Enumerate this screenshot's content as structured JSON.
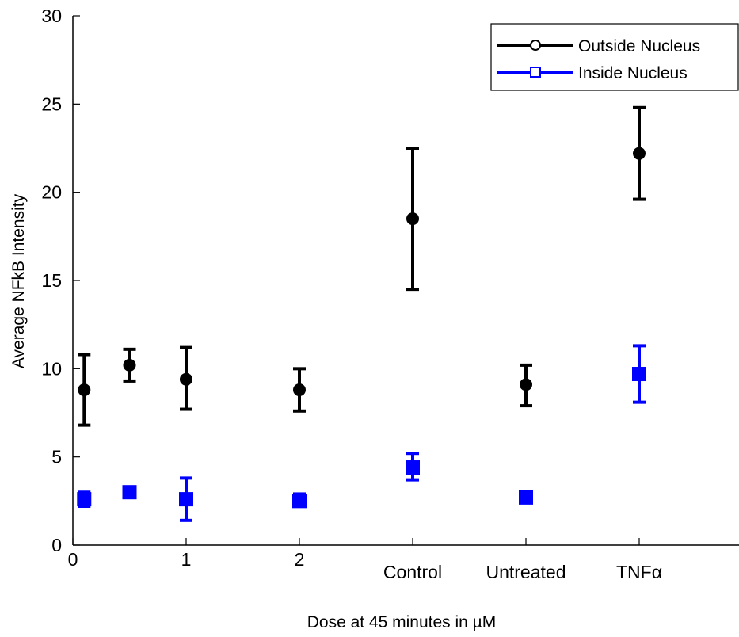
{
  "chart_data": {
    "type": "scatter",
    "title": "",
    "xlabel": "Dose at 45 minutes in µM",
    "ylabel": "Average NFkB Intensity",
    "ylim": [
      0,
      30
    ],
    "xlim": [
      0,
      6
    ],
    "grid": false,
    "legend_position": "top-right",
    "y_ticks": [
      "0",
      "5",
      "10",
      "15",
      "20",
      "25",
      "30"
    ],
    "y_tick_values": [
      0,
      5,
      10,
      15,
      20,
      25,
      30
    ],
    "x_ticks": [
      "0",
      "1",
      "2",
      "Control",
      "Untreated",
      "TNFα"
    ],
    "x_tick_values": [
      0,
      1,
      2,
      3,
      4,
      5
    ],
    "series": [
      {
        "name": "Outside Nucleus",
        "color": "#000000",
        "marker": "circle",
        "points": [
          {
            "x": 0.1,
            "y": 8.8,
            "lo": 6.8,
            "hi": 10.8
          },
          {
            "x": 0.5,
            "y": 10.2,
            "lo": 9.3,
            "hi": 11.1
          },
          {
            "x": 1.0,
            "y": 9.4,
            "lo": 7.7,
            "hi": 11.2
          },
          {
            "x": 2.0,
            "y": 8.8,
            "lo": 7.6,
            "hi": 10.0
          },
          {
            "x": 3.0,
            "y": 18.5,
            "lo": 14.5,
            "hi": 22.5
          },
          {
            "x": 4.0,
            "y": 9.1,
            "lo": 7.9,
            "hi": 10.2
          },
          {
            "x": 5.0,
            "y": 22.2,
            "lo": 19.6,
            "hi": 24.8
          }
        ]
      },
      {
        "name": "Inside Nucleus",
        "color": "#0000ff",
        "marker": "square",
        "points": [
          {
            "x": 0.1,
            "y": 2.6,
            "lo": 2.2,
            "hi": 3.0
          },
          {
            "x": 0.5,
            "y": 3.0,
            "lo": 2.7,
            "hi": 3.3
          },
          {
            "x": 1.0,
            "y": 2.6,
            "lo": 1.4,
            "hi": 3.8
          },
          {
            "x": 2.0,
            "y": 2.5,
            "lo": 2.2,
            "hi": 2.9
          },
          {
            "x": 3.0,
            "y": 4.4,
            "lo": 3.7,
            "hi": 5.2
          },
          {
            "x": 4.0,
            "y": 2.7,
            "lo": 2.5,
            "hi": 2.9
          },
          {
            "x": 5.0,
            "y": 9.7,
            "lo": 8.1,
            "hi": 11.3
          }
        ]
      }
    ]
  }
}
